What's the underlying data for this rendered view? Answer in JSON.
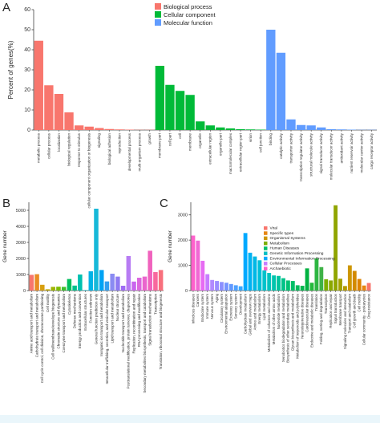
{
  "chart_data": [
    {
      "panel": "A",
      "type": "bar",
      "ylabel": "Percent of genes(%)",
      "ylim": [
        0,
        60
      ],
      "yticks": [
        0,
        10,
        20,
        30,
        40,
        50,
        60
      ],
      "legend": {
        "placement": "top-center",
        "entries": [
          {
            "name": "Biological process",
            "color": "#f8766d"
          },
          {
            "name": "Cellular component",
            "color": "#00ba38"
          },
          {
            "name": "Molecular function",
            "color": "#619cff"
          }
        ]
      },
      "categories": [
        "metabolic process",
        "cellular process",
        "localization",
        "biological regulation",
        "response to stimulus",
        "cellular component organization or biogenesis",
        "signaling",
        "biological adhesion",
        "reproduction",
        "developmental process",
        "multi-organism process",
        "growth",
        "membrane part",
        "cell part",
        "cell",
        "membrane",
        "organelle",
        "extracellular region",
        "organelle part",
        "macromolecular complex",
        "extracellular region part",
        "virion",
        "cell junction",
        "binding",
        "catalytic activity",
        "transporter activity",
        "transcription regulator activity",
        "structural molecule activity",
        "signal transducer activity",
        "molecular transducer activity",
        "antioxidant activity",
        "nutrient reservoir activity",
        "molecular carrier activity",
        "cargo receptor activity"
      ],
      "series": [
        {
          "name": "Biological process",
          "color": "#f8766d",
          "values": [
            44.5,
            22.3,
            18,
            8.8,
            2.3,
            1.7,
            1.0,
            0.5,
            0.3,
            0.2,
            0.1,
            0.1,
            null,
            null,
            null,
            null,
            null,
            null,
            null,
            null,
            null,
            null,
            null,
            null,
            null,
            null,
            null,
            null,
            null,
            null,
            null,
            null,
            null,
            null
          ]
        },
        {
          "name": "Cellular component",
          "color": "#00ba38",
          "values": [
            null,
            null,
            null,
            null,
            null,
            null,
            null,
            null,
            null,
            null,
            null,
            null,
            32,
            22.5,
            19.5,
            17.5,
            4.3,
            2.3,
            1.3,
            0.8,
            0.4,
            0.3,
            0.2,
            null,
            null,
            null,
            null,
            null,
            null,
            null,
            null,
            null,
            null,
            null
          ]
        },
        {
          "name": "Molecular function",
          "color": "#619cff",
          "values": [
            null,
            null,
            null,
            null,
            null,
            null,
            null,
            null,
            null,
            null,
            null,
            null,
            null,
            null,
            null,
            null,
            null,
            null,
            null,
            null,
            null,
            null,
            null,
            50,
            38.5,
            5.3,
            2.5,
            2.3,
            1.3,
            0.4,
            0.3,
            0.2,
            0.1,
            0.1
          ]
        }
      ]
    },
    {
      "panel": "B",
      "type": "bar",
      "ylabel": "Gene number",
      "ylim": [
        0,
        5500
      ],
      "yticks": [
        0,
        1000,
        2000,
        3000,
        4000,
        5000
      ],
      "categories": [
        "Amino acid transport and metabolism",
        "Carbohydrate transport and metabolism",
        "Cell cycle control, cell division, chromosome partitioning",
        "Cell motility",
        "Cell wall/membrane/envelope biogenesis",
        "Chromatin structure and dynamics",
        "Coenzyme transport and metabolism",
        "Cytoskeleton",
        "Defense mechanisms",
        "Energy production and conversion",
        "Extracellular structures",
        "Function unknown",
        "General function prediction only",
        "Inorganic ion transport and metabolism",
        "Intracellular trafficking, secretion, and vesicular transport",
        "Lipid transport and metabolism",
        "Nuclear structure",
        "Nucleotide transport and metabolism",
        "Posttranslational modification, protein turnover, chaperones",
        "Replication, recombination and repair",
        "RNA processing and modification",
        "Secondary metabolites biosynthesis, transport and catabolism",
        "Signal transduction mechanisms",
        "Transcription",
        "Translation, ribosomal structure and biogenesis"
      ],
      "values": [
        980,
        1020,
        360,
        80,
        230,
        240,
        230,
        720,
        310,
        1000,
        30,
        1200,
        5100,
        1280,
        570,
        1050,
        870,
        300,
        2150,
        560,
        800,
        870,
        2480,
        1150,
        1280
      ],
      "colors": [
        "#f8766d",
        "#e98c24",
        "#d79f0f",
        "#bfa800",
        "#9fb300",
        "#7cbd00",
        "#3fbf2e",
        "#00bf5e",
        "#00c08b",
        "#00c0b0",
        "#00bcd0",
        "#00b3e6",
        "#16b8d8",
        "#00a3f4",
        "#319ff0",
        "#8a8bf2",
        "#8f7af2",
        "#9f6cf4",
        "#b77cf3",
        "#c964ee",
        "#dc67df",
        "#ea65cd",
        "#f062bd",
        "#f8689d",
        "#f8707d"
      ]
    },
    {
      "panel": "C",
      "type": "bar",
      "ylabel": "Gene number",
      "ylim": [
        0,
        3500
      ],
      "yticks": [
        0,
        1000,
        2000,
        3000
      ],
      "legend": {
        "placement": "top-center",
        "entries": [
          {
            "name": "Viral",
            "color": "#f8766d"
          },
          {
            "name": "Specific types",
            "color": "#e68613"
          },
          {
            "name": "Organismal Systems",
            "color": "#cd9600"
          },
          {
            "name": "Metabolism",
            "color": "#7cae00"
          },
          {
            "name": "Human Diseases",
            "color": "#00be67"
          },
          {
            "name": "Genetic Information Processing",
            "color": "#00bfc4"
          },
          {
            "name": "Environmental Information Processing",
            "color": "#00a9ff"
          },
          {
            "name": "Cellular Processes",
            "color": "#c77cff"
          },
          {
            "name": "Archaebiotic",
            "color": "#ff61cc"
          }
        ]
      },
      "categories": [
        "Infectious diseases",
        "Cancers",
        "Endocrine system",
        "Immune system",
        "Nervous system",
        "Aging",
        "Circulatory system",
        "Environmental adaptation",
        "Excretory system",
        "Sensory system",
        "Development",
        "Carbohydrate metabolism",
        "Global and overview maps",
        "Amino acid metabolism",
        "Energy metabolism",
        "Lipid metabolism",
        "Metabolism of cofactors and vitamins",
        "Metabolism of other amino acids",
        "Nucleotide metabolism",
        "Xenobiotics biodegradation and metabolism",
        "Biosynthesis of other secondary metabolites",
        "Glycan biosynthesis and metabolism",
        "Metabolism of terpenoids and polyketides",
        "Neurodegenerative diseases",
        "Cardiovascular diseases",
        "Endocrine and metabolic diseases",
        "Translation",
        "Folding, sorting and degradation",
        "Transcription",
        "Replication and repair",
        "Signal transduction",
        "Membrane transport",
        "Signaling molecules and interaction",
        "Transport and catabolism",
        "Cell growth and death",
        "Cell motility",
        "Cellular community - prokaryotes",
        "Drug resistance"
      ],
      "values": [
        2180,
        1980,
        1180,
        650,
        420,
        380,
        340,
        310,
        260,
        210,
        170,
        2280,
        1500,
        1350,
        1200,
        800,
        700,
        600,
        580,
        490,
        400,
        380,
        210,
        190,
        880,
        310,
        1280,
        930,
        450,
        400,
        3380,
        470,
        180,
        1000,
        780,
        460,
        200,
        300
      ],
      "colors": [
        "#ff61cc",
        "#f068d4",
        "#e76bf3",
        "#c77cff",
        "#b28aff",
        "#9c8dff",
        "#8b8fff",
        "#7694ff",
        "#6199ff",
        "#4ea1ff",
        "#35a7ff",
        "#00a9ff",
        "#00b2f2",
        "#00b8e5",
        "#00bfd8",
        "#00c2cc",
        "#00c3be",
        "#00c4ae",
        "#00c49d",
        "#00c389",
        "#00c274",
        "#00be67",
        "#00bb5a",
        "#00b84d",
        "#00b241",
        "#24b93b",
        "#2db642",
        "#3fb247",
        "#7cae00",
        "#8ba700",
        "#90a500",
        "#a2a000",
        "#b39a00",
        "#cd9600",
        "#d38a00",
        "#dd8200",
        "#e68613",
        "#f8766d"
      ]
    }
  ],
  "panel_labels": {
    "a": "A",
    "b": "B",
    "c": "C"
  }
}
